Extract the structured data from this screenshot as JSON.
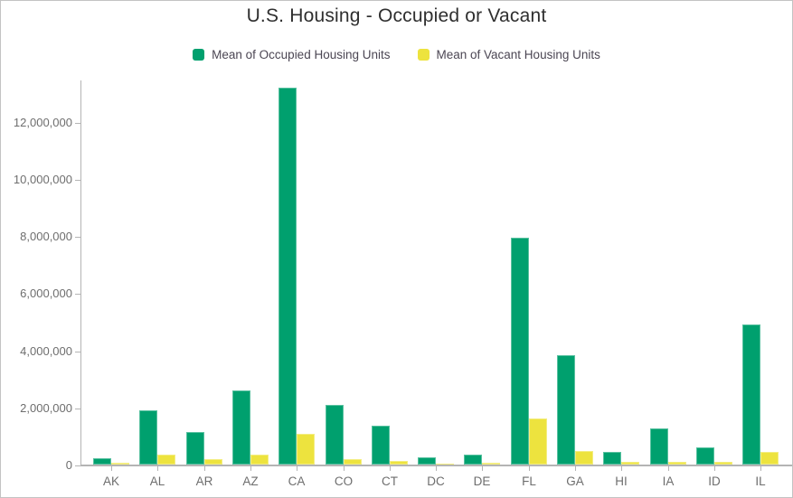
{
  "chart_title": "U.S. Housing - Occupied or Vacant",
  "colors": {
    "occupied": "#00a06e",
    "vacant": "#ede33e",
    "axis": "#b4b4b4",
    "axis_text": "#6e6e6e",
    "legend_text": "#4b4653",
    "title_text": "#2f2f2f"
  },
  "chart_data": {
    "type": "bar",
    "title": "U.S. Housing - Occupied or Vacant",
    "xlabel": "",
    "ylabel": "",
    "grid": false,
    "legend_position": "top",
    "categories": [
      "AK",
      "AL",
      "AR",
      "AZ",
      "CA",
      "CO",
      "CT",
      "DC",
      "DE",
      "FL",
      "GA",
      "HI",
      "IA",
      "ID",
      "IL"
    ],
    "series": [
      {
        "name": "Mean of Occupied Housing Units",
        "color": "#00a06e",
        "values": [
          210000,
          1890000,
          1130000,
          2600000,
          13200000,
          2100000,
          1360000,
          250000,
          340000,
          7950000,
          3820000,
          440000,
          1260000,
          610000,
          4890000
        ]
      },
      {
        "name": "Mean of Vacant Housing Units",
        "color": "#ede33e",
        "values": [
          55000,
          350000,
          180000,
          360000,
          1080000,
          190000,
          130000,
          30000,
          60000,
          1600000,
          470000,
          80000,
          110000,
          90000,
          450000
        ]
      }
    ],
    "ylim": [
      0,
      13400000
    ],
    "yticks": {
      "values": [
        0,
        2000000,
        4000000,
        6000000,
        8000000,
        10000000,
        12000000
      ],
      "labels": [
        "0",
        "2,000,000",
        "4,000,000",
        "6,000,000",
        "8,000,000",
        "10,000,000",
        "12,000,000"
      ]
    }
  }
}
